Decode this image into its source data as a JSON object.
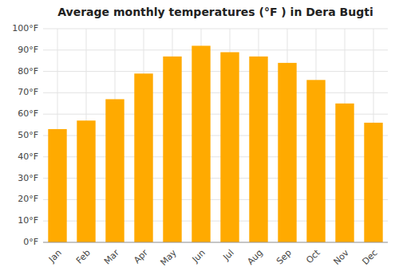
{
  "chart_data": {
    "type": "bar",
    "title": "Average monthly temperatures (°F ) in Dera Bugti",
    "categories": [
      "Jan",
      "Feb",
      "Mar",
      "Apr",
      "May",
      "Jun",
      "Jul",
      "Aug",
      "Sep",
      "Oct",
      "Nov",
      "Dec"
    ],
    "values": [
      53,
      57,
      67,
      79,
      87,
      92,
      89,
      87,
      84,
      76,
      65,
      56
    ],
    "color": "#FFAA00",
    "ylim": [
      0,
      100
    ],
    "yticks": [
      {
        "value": 0,
        "label": "0°F"
      },
      {
        "value": 10,
        "label": "10°F"
      },
      {
        "value": 20,
        "label": "20°F"
      },
      {
        "value": 30,
        "label": "30°F"
      },
      {
        "value": 40,
        "label": "40°F"
      },
      {
        "value": 50,
        "label": "50°F"
      },
      {
        "value": 60,
        "label": "60°F"
      },
      {
        "value": 70,
        "label": "70°F"
      },
      {
        "value": 80,
        "label": "80°F"
      },
      {
        "value": 90,
        "label": "90°F"
      },
      {
        "value": 100,
        "label": "100°F"
      }
    ],
    "grid": true
  }
}
